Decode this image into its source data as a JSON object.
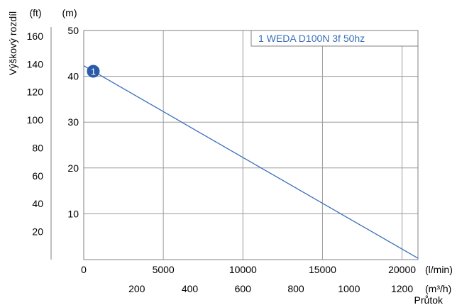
{
  "chart_data": {
    "type": "line",
    "ylabel": "Výškový rozdíl",
    "xlabel": "Průtok",
    "y_units": {
      "primary": "(m)",
      "secondary": "(ft)"
    },
    "x_units": {
      "primary": "(l/min)",
      "secondary": "(m³/h)"
    },
    "xlim": [
      0,
      21000
    ],
    "ylim": [
      0,
      50
    ],
    "grid": true,
    "legend": {
      "position": "top-right",
      "label": "1 WEDA D100N 3f 50hz"
    },
    "x_ticks": [
      "0",
      "5000",
      "10000",
      "15000",
      "20000"
    ],
    "x_tick_values": [
      0,
      5000,
      10000,
      15000,
      20000
    ],
    "x2_ticks": [
      "200",
      "400",
      "600",
      "800",
      "1000",
      "1200"
    ],
    "x2_tick_values": [
      200,
      400,
      600,
      800,
      1000,
      1200
    ],
    "y_ticks": [
      "10",
      "20",
      "30",
      "40",
      "50"
    ],
    "y_tick_values": [
      10,
      20,
      30,
      40,
      50
    ],
    "y2_ticks": [
      "20",
      "40",
      "60",
      "80",
      "100",
      "120",
      "140",
      "160"
    ],
    "y2_tick_values": [
      20,
      40,
      60,
      80,
      100,
      120,
      140,
      160
    ],
    "series": [
      {
        "name": "1",
        "color": "#3a6fba",
        "marker_x": 600,
        "x": [
          0,
          21000
        ],
        "y": [
          42.3,
          0.3
        ]
      }
    ]
  }
}
